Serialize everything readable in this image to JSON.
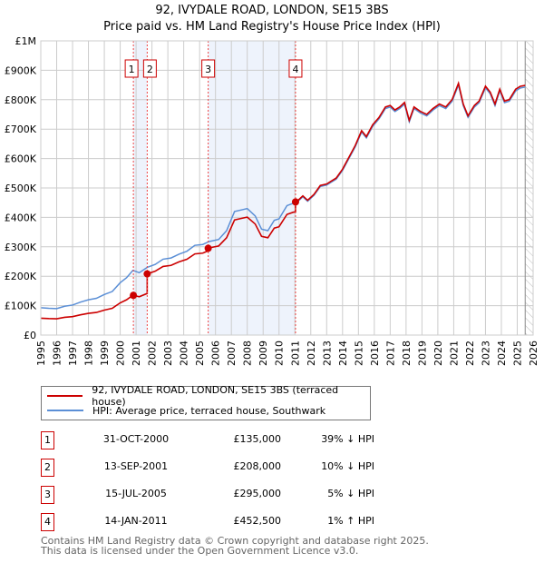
{
  "chart_data": {
    "type": "line",
    "title": "92, IVYDALE ROAD, LONDON, SE15 3BS",
    "subtitle": "Price paid vs. HM Land Registry's House Price Index (HPI)",
    "xlim": [
      1995,
      2026
    ],
    "ylim": [
      0,
      1000000
    ],
    "x_ticks": [
      "1995",
      "1996",
      "1997",
      "1998",
      "1999",
      "2000",
      "2001",
      "2002",
      "2003",
      "2004",
      "2005",
      "2006",
      "2007",
      "2008",
      "2009",
      "2010",
      "2011",
      "2012",
      "2013",
      "2014",
      "2015",
      "2016",
      "2017",
      "2018",
      "2019",
      "2020",
      "2021",
      "2022",
      "2023",
      "2024",
      "2025",
      "2026"
    ],
    "y_ticks": [
      {
        "v": 0,
        "label": "£0"
      },
      {
        "v": 100000,
        "label": "£100K"
      },
      {
        "v": 200000,
        "label": "£200K"
      },
      {
        "v": 300000,
        "label": "£300K"
      },
      {
        "v": 400000,
        "label": "£400K"
      },
      {
        "v": 500000,
        "label": "£500K"
      },
      {
        "v": 600000,
        "label": "£600K"
      },
      {
        "v": 700000,
        "label": "£700K"
      },
      {
        "v": 800000,
        "label": "£800K"
      },
      {
        "v": 900000,
        "label": "£900K"
      },
      {
        "v": 1000000,
        "label": "£1M"
      }
    ],
    "grid": true,
    "colors": {
      "price": "#cc0000",
      "hpi": "#5b8fd6",
      "shade": "#eef3fc"
    },
    "hpi": {
      "x": [
        1995,
        1995.5,
        1996,
        1996.5,
        1997,
        1997.5,
        1998,
        1998.5,
        1999,
        1999.5,
        2000,
        2000.4,
        2000.8,
        2001.2,
        2001.7,
        2002.2,
        2002.7,
        2003.2,
        2003.7,
        2004.2,
        2004.7,
        2005.2,
        2005.6,
        2006.2,
        2006.7,
        2007.2,
        2007.6,
        2008.0,
        2008.5,
        2008.9,
        2009.3,
        2009.7,
        2010.0,
        2010.5,
        2010.9,
        2011.1,
        2011.5,
        2011.8,
        2012.2,
        2012.6,
        2013.0,
        2013.3,
        2013.6,
        2014.0,
        2014.4,
        2014.8,
        2015.2,
        2015.5,
        2015.9,
        2016.3,
        2016.7,
        2017.0,
        2017.3,
        2017.6,
        2017.9,
        2018.2,
        2018.5,
        2018.9,
        2019.3,
        2019.7,
        2020.1,
        2020.5,
        2020.9,
        2021.3,
        2021.6,
        2021.9,
        2022.3,
        2022.6,
        2023.0,
        2023.3,
        2023.6,
        2023.9,
        2024.2,
        2024.5,
        2024.9,
        2025.2,
        2025.5
      ],
      "y": [
        93000,
        91000,
        90000,
        98000,
        102000,
        112000,
        120000,
        125000,
        138000,
        148000,
        178000,
        195000,
        220000,
        212000,
        230000,
        240000,
        258000,
        262000,
        275000,
        285000,
        305000,
        308000,
        318000,
        325000,
        355000,
        420000,
        425000,
        430000,
        405000,
        360000,
        355000,
        390000,
        395000,
        440000,
        448000,
        450000,
        470000,
        455000,
        475000,
        505000,
        510000,
        520000,
        530000,
        560000,
        600000,
        640000,
        690000,
        670000,
        710000,
        735000,
        770000,
        775000,
        760000,
        770000,
        785000,
        725000,
        770000,
        755000,
        745000,
        765000,
        780000,
        770000,
        795000,
        850000,
        780000,
        740000,
        775000,
        790000,
        840000,
        820000,
        780000,
        830000,
        790000,
        795000,
        830000,
        840000,
        843000
      ]
    },
    "sales": [
      {
        "n": "1",
        "year": 2000.83,
        "date": "31-OCT-2000",
        "price": 135000,
        "price_label": "£135,000",
        "hpi": "39% ↓ HPI"
      },
      {
        "n": "2",
        "year": 2001.7,
        "date": "13-SEP-2001",
        "price": 208000,
        "price_label": "£208,000",
        "hpi": "10% ↓ HPI"
      },
      {
        "n": "3",
        "year": 2005.54,
        "date": "15-JUL-2005",
        "price": 295000,
        "price_label": "£295,000",
        "hpi": "5% ↓ HPI"
      },
      {
        "n": "4",
        "year": 2011.04,
        "date": "14-JAN-2011",
        "price": 452500,
        "price_label": "£452,500",
        "hpi": "1% ↑ HPI"
      }
    ],
    "legend": {
      "placement": "below",
      "price": "92, IVYDALE ROAD, LONDON, SE15 3BS (terraced house)",
      "hpi": "HPI: Average price, terraced house, Southwark"
    }
  },
  "footer": [
    "Contains HM Land Registry data © Crown copyright and database right 2025.",
    "This data is licensed under the Open Government Licence v3.0."
  ]
}
